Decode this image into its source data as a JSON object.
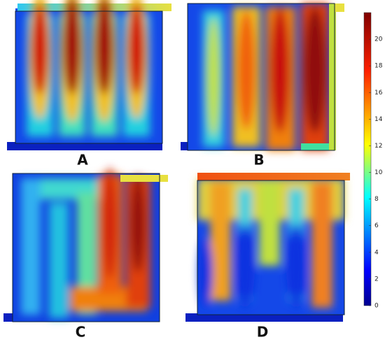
{
  "panels": [
    {
      "label": "A"
    },
    {
      "label": "B"
    },
    {
      "label": "C"
    },
    {
      "label": "D"
    }
  ],
  "colorbar": {
    "lim": [
      0,
      22
    ],
    "ticks": [
      0,
      2,
      4,
      6,
      8,
      10,
      12,
      14,
      16,
      18,
      20
    ]
  }
}
